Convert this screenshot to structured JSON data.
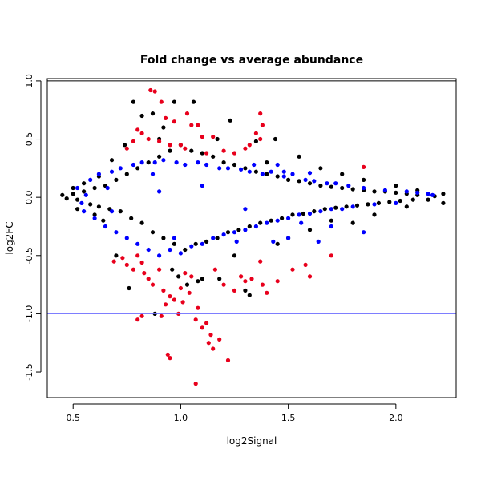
{
  "chart_data": {
    "type": "scatter",
    "title": "Fold change vs average abundance",
    "xlabel": "log2Signal",
    "ylabel": "log2FC",
    "xlim": [
      0.38,
      2.28
    ],
    "ylim": [
      -1.72,
      1.02
    ],
    "xticks": [
      {
        "value": 0.5,
        "label": "0.5"
      },
      {
        "value": 1.0,
        "label": "1.0"
      },
      {
        "value": 1.5,
        "label": "1.5"
      },
      {
        "value": 2.0,
        "label": "2.0"
      }
    ],
    "yticks": [
      {
        "value": 1.0,
        "label": "1.0"
      },
      {
        "value": 0.5,
        "label": "0.5"
      },
      {
        "value": 0.0,
        "label": "0.0"
      },
      {
        "value": -0.5,
        "label": "-0.5"
      },
      {
        "value": -1.0,
        "label": "-1.0"
      },
      {
        "value": -1.5,
        "label": "-1.5"
      }
    ],
    "hlines": [
      {
        "y": 1.0,
        "color": "#000000"
      },
      {
        "y": -1.0,
        "color": "#6b6bff"
      }
    ],
    "colors": {
      "black": "#000000",
      "blue": "#0000ff",
      "red": "#e8001c"
    },
    "grid": false,
    "series": [
      {
        "color": "#000000",
        "points": [
          [
            0.45,
            0.02
          ],
          [
            0.47,
            -0.01
          ],
          [
            0.5,
            0.03
          ],
          [
            0.52,
            -0.02
          ],
          [
            0.55,
            0.05
          ],
          [
            0.58,
            -0.06
          ],
          [
            0.6,
            0.08
          ],
          [
            0.62,
            -0.08
          ],
          [
            0.65,
            0.1
          ],
          [
            0.67,
            -0.1
          ],
          [
            0.7,
            0.15
          ],
          [
            0.72,
            -0.12
          ],
          [
            0.75,
            0.2
          ],
          [
            0.77,
            -0.18
          ],
          [
            0.8,
            0.25
          ],
          [
            0.82,
            -0.22
          ],
          [
            0.85,
            0.3
          ],
          [
            0.87,
            -0.3
          ],
          [
            0.9,
            0.35
          ],
          [
            0.92,
            -0.35
          ],
          [
            0.95,
            0.4
          ],
          [
            0.97,
            -0.4
          ],
          [
            1.0,
            0.45
          ],
          [
            1.02,
            -0.45
          ],
          [
            1.05,
            0.4
          ],
          [
            1.07,
            -0.4
          ],
          [
            1.1,
            0.38
          ],
          [
            1.12,
            -0.38
          ],
          [
            1.15,
            0.35
          ],
          [
            1.17,
            -0.35
          ],
          [
            1.2,
            0.3
          ],
          [
            1.22,
            -0.3
          ],
          [
            1.25,
            0.28
          ],
          [
            1.27,
            -0.28
          ],
          [
            1.3,
            0.25
          ],
          [
            1.32,
            -0.25
          ],
          [
            1.35,
            0.22
          ],
          [
            1.37,
            -0.22
          ],
          [
            1.4,
            0.2
          ],
          [
            1.42,
            -0.2
          ],
          [
            1.45,
            0.18
          ],
          [
            1.47,
            -0.18
          ],
          [
            1.5,
            0.15
          ],
          [
            1.52,
            -0.15
          ],
          [
            1.55,
            0.14
          ],
          [
            1.57,
            -0.14
          ],
          [
            1.6,
            0.12
          ],
          [
            1.62,
            -0.12
          ],
          [
            1.65,
            0.1
          ],
          [
            1.67,
            -0.1
          ],
          [
            1.7,
            0.09
          ],
          [
            1.72,
            -0.09
          ],
          [
            1.75,
            0.08
          ],
          [
            1.77,
            -0.08
          ],
          [
            1.8,
            0.07
          ],
          [
            1.82,
            -0.07
          ],
          [
            1.85,
            0.06
          ],
          [
            1.87,
            -0.06
          ],
          [
            1.9,
            0.05
          ],
          [
            1.92,
            -0.05
          ],
          [
            1.95,
            0.05
          ],
          [
            1.97,
            -0.04
          ],
          [
            2.0,
            0.04
          ],
          [
            2.02,
            -0.03
          ],
          [
            2.05,
            0.03
          ],
          [
            2.08,
            -0.02
          ],
          [
            2.1,
            0.02
          ],
          [
            2.15,
            -0.02
          ],
          [
            2.22,
            0.03
          ],
          [
            2.22,
            -0.05
          ],
          [
            0.78,
            0.82
          ],
          [
            0.82,
            0.7
          ],
          [
            0.87,
            0.72
          ],
          [
            0.92,
            0.6
          ],
          [
            0.97,
            0.82
          ],
          [
            1.06,
            0.82
          ],
          [
            0.9,
            0.5
          ],
          [
            1.17,
            0.5
          ],
          [
            1.23,
            0.66
          ],
          [
            1.35,
            0.48
          ],
          [
            0.96,
            -0.62
          ],
          [
            0.99,
            -0.68
          ],
          [
            1.03,
            -0.75
          ],
          [
            1.1,
            -0.7
          ],
          [
            1.18,
            -0.7
          ],
          [
            1.3,
            -0.8
          ],
          [
            1.32,
            -0.84
          ],
          [
            0.76,
            -0.78
          ],
          [
            0.88,
            -1.0
          ],
          [
            1.08,
            -0.72
          ],
          [
            0.68,
            0.32
          ],
          [
            0.7,
            -0.5
          ],
          [
            0.74,
            0.45
          ],
          [
            1.25,
            -0.5
          ],
          [
            1.4,
            0.3
          ],
          [
            1.44,
            0.5
          ],
          [
            1.5,
            -0.35
          ],
          [
            1.55,
            0.35
          ],
          [
            1.6,
            -0.28
          ],
          [
            1.65,
            0.25
          ],
          [
            1.7,
            -0.2
          ],
          [
            1.8,
            -0.22
          ],
          [
            1.9,
            -0.15
          ],
          [
            2.0,
            0.1
          ],
          [
            2.05,
            -0.08
          ],
          [
            2.1,
            0.06
          ],
          [
            2.18,
            0.01
          ],
          [
            1.75,
            0.2
          ],
          [
            1.85,
            0.15
          ],
          [
            1.45,
            -0.4
          ],
          [
            0.6,
            -0.15
          ],
          [
            0.55,
            0.12
          ],
          [
            0.52,
            -0.1
          ],
          [
            0.5,
            0.08
          ],
          [
            0.62,
            0.18
          ],
          [
            0.64,
            -0.2
          ]
        ]
      },
      {
        "color": "#0000ff",
        "points": [
          [
            0.52,
            0.08
          ],
          [
            0.55,
            -0.12
          ],
          [
            0.58,
            0.15
          ],
          [
            0.6,
            -0.18
          ],
          [
            0.62,
            0.2
          ],
          [
            0.65,
            -0.25
          ],
          [
            0.68,
            0.22
          ],
          [
            0.7,
            -0.3
          ],
          [
            0.72,
            0.25
          ],
          [
            0.75,
            -0.35
          ],
          [
            0.78,
            0.28
          ],
          [
            0.8,
            -0.4
          ],
          [
            0.82,
            0.3
          ],
          [
            0.85,
            -0.45
          ],
          [
            0.88,
            0.3
          ],
          [
            0.9,
            -0.5
          ],
          [
            0.92,
            0.32
          ],
          [
            0.95,
            -0.45
          ],
          [
            0.98,
            0.3
          ],
          [
            1.0,
            -0.48
          ],
          [
            1.02,
            0.28
          ],
          [
            1.05,
            -0.42
          ],
          [
            1.08,
            0.3
          ],
          [
            1.1,
            -0.4
          ],
          [
            1.12,
            0.28
          ],
          [
            1.15,
            -0.35
          ],
          [
            1.18,
            0.25
          ],
          [
            1.2,
            -0.32
          ],
          [
            1.22,
            0.25
          ],
          [
            1.25,
            -0.3
          ],
          [
            1.28,
            0.24
          ],
          [
            1.3,
            -0.28
          ],
          [
            1.32,
            0.22
          ],
          [
            1.35,
            -0.25
          ],
          [
            1.38,
            0.2
          ],
          [
            1.4,
            -0.22
          ],
          [
            1.42,
            0.22
          ],
          [
            1.45,
            -0.2
          ],
          [
            1.48,
            0.18
          ],
          [
            1.5,
            -0.18
          ],
          [
            1.52,
            0.2
          ],
          [
            1.55,
            -0.15
          ],
          [
            1.58,
            0.15
          ],
          [
            1.6,
            -0.14
          ],
          [
            1.62,
            0.14
          ],
          [
            1.65,
            -0.12
          ],
          [
            1.68,
            0.12
          ],
          [
            1.7,
            -0.1
          ],
          [
            1.72,
            0.12
          ],
          [
            1.75,
            -0.1
          ],
          [
            1.78,
            0.1
          ],
          [
            1.8,
            -0.08
          ],
          [
            1.85,
            0.08
          ],
          [
            1.9,
            -0.06
          ],
          [
            1.95,
            0.06
          ],
          [
            2.0,
            -0.05
          ],
          [
            2.05,
            0.05
          ],
          [
            2.1,
            0.04
          ],
          [
            2.15,
            0.03
          ],
          [
            2.17,
            0.02
          ],
          [
            1.48,
            0.22
          ],
          [
            1.56,
            -0.22
          ],
          [
            1.64,
            -0.38
          ],
          [
            1.7,
            -0.25
          ],
          [
            1.85,
            -0.3
          ],
          [
            1.6,
            0.21
          ],
          [
            1.43,
            -0.38
          ],
          [
            1.34,
            0.28
          ],
          [
            1.26,
            -0.38
          ],
          [
            0.97,
            -0.35
          ],
          [
            0.87,
            0.2
          ],
          [
            0.66,
            0.08
          ],
          [
            0.68,
            -0.12
          ],
          [
            0.56,
            0.02
          ],
          [
            0.54,
            -0.05
          ],
          [
            1.5,
            -0.35
          ],
          [
            1.45,
            0.28
          ],
          [
            1.3,
            -0.1
          ],
          [
            1.1,
            0.1
          ],
          [
            0.9,
            0.05
          ]
        ]
      },
      {
        "color": "#e8001c",
        "points": [
          [
            0.86,
            0.92
          ],
          [
            0.88,
            0.91
          ],
          [
            0.91,
            0.82
          ],
          [
            0.93,
            0.68
          ],
          [
            0.97,
            0.65
          ],
          [
            1.03,
            0.72
          ],
          [
            1.05,
            0.62
          ],
          [
            1.08,
            0.62
          ],
          [
            0.8,
            0.58
          ],
          [
            0.82,
            0.55
          ],
          [
            0.85,
            0.5
          ],
          [
            0.9,
            0.48
          ],
          [
            0.95,
            0.45
          ],
          [
            1.0,
            0.45
          ],
          [
            1.02,
            0.42
          ],
          [
            1.1,
            0.52
          ],
          [
            1.15,
            0.52
          ],
          [
            1.2,
            0.4
          ],
          [
            1.25,
            0.38
          ],
          [
            1.3,
            0.42
          ],
          [
            1.35,
            0.55
          ],
          [
            1.37,
            0.72
          ],
          [
            1.38,
            0.62
          ],
          [
            1.37,
            0.5
          ],
          [
            1.32,
            0.45
          ],
          [
            1.12,
            0.38
          ],
          [
            0.75,
            0.42
          ],
          [
            0.78,
            0.48
          ],
          [
            0.73,
            -0.52
          ],
          [
            0.75,
            -0.58
          ],
          [
            0.78,
            -0.62
          ],
          [
            0.8,
            -0.5
          ],
          [
            0.82,
            -0.56
          ],
          [
            0.83,
            -0.65
          ],
          [
            0.85,
            -0.7
          ],
          [
            0.87,
            -0.75
          ],
          [
            0.9,
            -0.62
          ],
          [
            0.92,
            -0.8
          ],
          [
            0.93,
            -0.92
          ],
          [
            0.95,
            -0.85
          ],
          [
            0.97,
            -0.88
          ],
          [
            0.99,
            -1.0
          ],
          [
            1.0,
            -0.78
          ],
          [
            1.02,
            -0.65
          ],
          [
            1.04,
            -0.82
          ],
          [
            1.05,
            -0.68
          ],
          [
            1.07,
            -1.05
          ],
          [
            1.08,
            -0.95
          ],
          [
            1.1,
            -1.12
          ],
          [
            1.12,
            -1.08
          ],
          [
            1.13,
            -1.25
          ],
          [
            1.14,
            -1.18
          ],
          [
            1.15,
            -1.3
          ],
          [
            1.18,
            -1.22
          ],
          [
            1.2,
            -0.75
          ],
          [
            1.22,
            -1.4
          ],
          [
            1.25,
            -0.8
          ],
          [
            1.28,
            -0.68
          ],
          [
            1.3,
            -0.72
          ],
          [
            1.33,
            -0.7
          ],
          [
            1.37,
            -0.55
          ],
          [
            1.38,
            -0.75
          ],
          [
            1.4,
            -0.82
          ],
          [
            1.45,
            -0.72
          ],
          [
            1.52,
            -0.62
          ],
          [
            1.58,
            -0.58
          ],
          [
            1.6,
            -0.68
          ],
          [
            1.7,
            -0.5
          ],
          [
            0.94,
            -1.35
          ],
          [
            0.95,
            -1.38
          ],
          [
            1.07,
            -1.6
          ],
          [
            0.8,
            -1.05
          ],
          [
            0.82,
            -1.02
          ],
          [
            0.91,
            -1.02
          ],
          [
            1.01,
            -0.9
          ],
          [
            1.16,
            -0.62
          ],
          [
            0.69,
            -0.55
          ],
          [
            1.85,
            0.26
          ]
        ]
      }
    ]
  }
}
